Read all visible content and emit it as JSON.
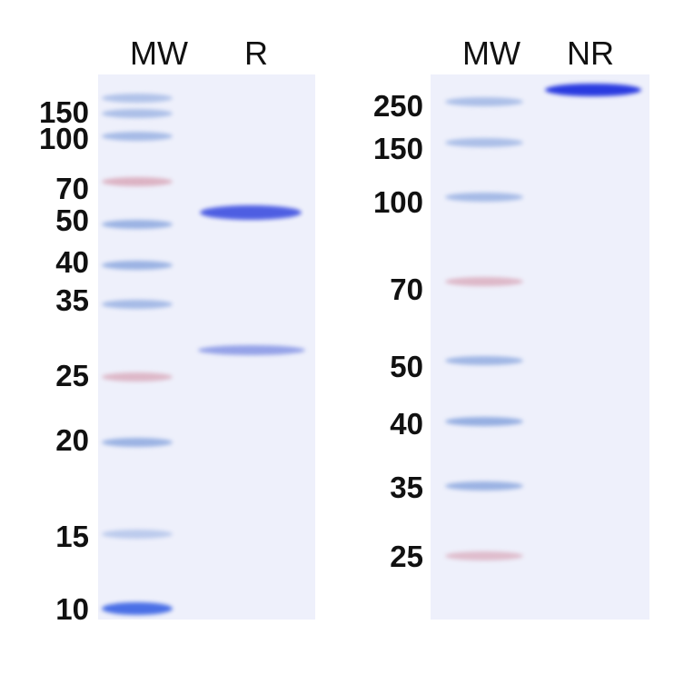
{
  "left_panel": {
    "lanes": [
      "MW",
      "R"
    ],
    "marker_labels": [
      "150",
      "100",
      "70",
      "50",
      "40",
      "35",
      "25",
      "20",
      "15",
      "10"
    ],
    "sample_bands_kda_approx": [
      55,
      27
    ]
  },
  "right_panel": {
    "lanes": [
      "MW",
      "NR"
    ],
    "marker_labels": [
      "250",
      "150",
      "100",
      "70",
      "50",
      "40",
      "35",
      "25"
    ],
    "sample_bands": [
      "above 250"
    ]
  },
  "colors": {
    "gel": "#eef0fb",
    "marker_blue": "#7f9edb",
    "marker_red": "#d08a9e",
    "sample_band": "#3d4fe0"
  }
}
